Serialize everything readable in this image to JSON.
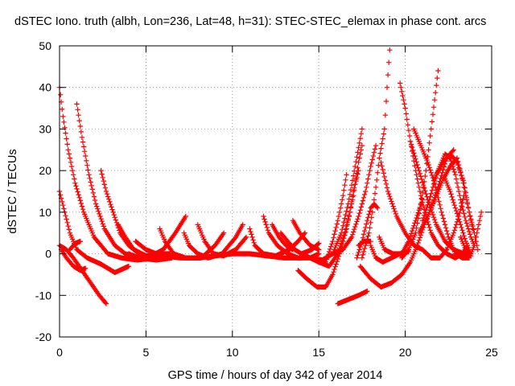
{
  "chart_data": {
    "type": "scatter",
    "title": "dSTEC Iono. truth (albh, Lon=236, Lat=48, h=31): STEC-STEC_elemax in phase cont. arcs",
    "xlabel": "GPS time / hours of day 342 of year 2014",
    "ylabel": "dSTEC  / TECUs",
    "xlim": [
      0,
      25
    ],
    "ylim": [
      -20,
      50
    ],
    "x_ticks": [
      "0",
      "5",
      "10",
      "15",
      "20",
      "25"
    ],
    "y_ticks": [
      "-20",
      "-10",
      "0",
      "10",
      "20",
      "30",
      "40",
      "50"
    ],
    "grid": true,
    "marker": "+",
    "color": "#ff0000",
    "series": [
      {
        "points": [
          [
            0.0,
            40
          ],
          [
            0.2,
            33
          ],
          [
            0.5,
            25
          ],
          [
            0.9,
            17
          ],
          [
            1.4,
            10
          ],
          [
            2.0,
            4
          ],
          [
            2.8,
            0
          ],
          [
            3.6,
            -1
          ],
          [
            4.5,
            -1.5
          ],
          [
            5.5,
            -1
          ]
        ]
      },
      {
        "points": [
          [
            0.0,
            15
          ],
          [
            0.3,
            10
          ],
          [
            0.6,
            5
          ],
          [
            1.0,
            1
          ],
          [
            1.6,
            -1
          ],
          [
            2.4,
            -2.5
          ],
          [
            3.2,
            -4.5
          ],
          [
            4.0,
            -3
          ]
        ]
      },
      {
        "points": [
          [
            0.0,
            2
          ],
          [
            0.4,
            1
          ],
          [
            0.8,
            -1
          ],
          [
            1.3,
            -4
          ],
          [
            1.8,
            -7
          ],
          [
            2.3,
            -10
          ],
          [
            2.7,
            -12
          ]
        ]
      },
      {
        "points": [
          [
            0.1,
            1
          ],
          [
            0.4,
            -1
          ],
          [
            0.8,
            -3
          ],
          [
            1.2,
            -4
          ],
          [
            1.5,
            -3.5
          ]
        ]
      },
      {
        "points": [
          [
            0.6,
            1
          ],
          [
            0.9,
            2.5
          ],
          [
            1.2,
            3
          ]
        ]
      },
      {
        "points": [
          [
            1.0,
            36
          ],
          [
            1.3,
            28
          ],
          [
            1.7,
            19
          ],
          [
            2.1,
            12
          ],
          [
            2.6,
            6
          ],
          [
            3.2,
            2
          ],
          [
            3.8,
            0
          ],
          [
            4.6,
            -1
          ],
          [
            5.6,
            -1.5
          ],
          [
            6.5,
            -1
          ]
        ]
      },
      {
        "points": [
          [
            2.4,
            20
          ],
          [
            2.7,
            15
          ],
          [
            3.1,
            10
          ],
          [
            3.5,
            5
          ],
          [
            4.0,
            2
          ],
          [
            4.6,
            0
          ],
          [
            5.4,
            -1
          ],
          [
            6.4,
            -1
          ]
        ]
      },
      {
        "points": [
          [
            3.4,
            7
          ],
          [
            3.8,
            4
          ],
          [
            4.3,
            1
          ],
          [
            5.0,
            -0.5
          ],
          [
            6.0,
            -0.5
          ]
        ]
      },
      {
        "points": [
          [
            4.4,
            3
          ],
          [
            5.0,
            1
          ],
          [
            5.6,
            0
          ],
          [
            6.4,
            0
          ]
        ]
      },
      {
        "points": [
          [
            4.0,
            0
          ],
          [
            4.6,
            -1
          ],
          [
            5.3,
            -0.5
          ],
          [
            6.0,
            1
          ],
          [
            6.7,
            5
          ],
          [
            7.3,
            9
          ]
        ]
      },
      {
        "points": [
          [
            5.8,
            6
          ],
          [
            6.1,
            3
          ],
          [
            6.6,
            0
          ],
          [
            7.3,
            -1
          ],
          [
            8.2,
            -1
          ],
          [
            9.0,
            2
          ],
          [
            9.5,
            5
          ]
        ]
      },
      {
        "points": [
          [
            7.2,
            5
          ],
          [
            7.5,
            2
          ],
          [
            8.0,
            0
          ],
          [
            8.6,
            -1
          ],
          [
            9.4,
            0
          ],
          [
            10.2,
            4
          ],
          [
            10.6,
            7
          ]
        ]
      },
      {
        "points": [
          [
            8.0,
            7
          ],
          [
            8.4,
            3
          ],
          [
            8.9,
            0
          ],
          [
            9.5,
            -0.5
          ],
          [
            10.2,
            1
          ],
          [
            10.8,
            4
          ]
        ]
      },
      {
        "points": [
          [
            6.0,
            -0.5
          ],
          [
            7.0,
            -1
          ],
          [
            8.0,
            -1
          ],
          [
            9.0,
            -0.5
          ],
          [
            10.0,
            0
          ],
          [
            11.0,
            0
          ],
          [
            12.0,
            -0.5
          ],
          [
            13.0,
            -1
          ],
          [
            14.0,
            -1
          ]
        ]
      },
      {
        "points": [
          [
            11.0,
            6
          ],
          [
            11.3,
            2
          ],
          [
            11.8,
            0
          ],
          [
            12.5,
            -0.5
          ],
          [
            13.3,
            1
          ],
          [
            13.8,
            3
          ],
          [
            14.2,
            5
          ]
        ]
      },
      {
        "points": [
          [
            11.8,
            9
          ],
          [
            12.1,
            5
          ],
          [
            12.6,
            2
          ],
          [
            13.2,
            0
          ],
          [
            13.8,
            -1
          ],
          [
            14.5,
            -1
          ],
          [
            15.0,
            0
          ]
        ]
      },
      {
        "points": [
          [
            12.3,
            7
          ],
          [
            12.7,
            4
          ],
          [
            13.1,
            2
          ],
          [
            13.5,
            1
          ]
        ]
      },
      {
        "points": [
          [
            12.8,
            5
          ],
          [
            13.2,
            3
          ],
          [
            13.6,
            1
          ],
          [
            14.0,
            0
          ],
          [
            14.6,
            1
          ],
          [
            15.0,
            2.5
          ]
        ]
      },
      {
        "points": [
          [
            13.5,
            8
          ],
          [
            13.9,
            5
          ],
          [
            14.5,
            2
          ],
          [
            15.0,
            1
          ]
        ]
      },
      {
        "points": [
          [
            14.0,
            0
          ],
          [
            14.5,
            -1
          ],
          [
            15.0,
            -2
          ],
          [
            15.4,
            -2
          ],
          [
            15.8,
            3
          ],
          [
            16.1,
            8
          ],
          [
            16.4,
            14
          ],
          [
            16.6,
            19
          ]
        ]
      },
      {
        "points": [
          [
            13.8,
            -4
          ],
          [
            14.3,
            -6
          ],
          [
            14.9,
            -8
          ],
          [
            15.4,
            -8
          ],
          [
            15.8,
            -5
          ],
          [
            16.2,
            0
          ],
          [
            16.6,
            6
          ],
          [
            17.0,
            14
          ],
          [
            17.3,
            22
          ],
          [
            17.5,
            26
          ]
        ]
      },
      {
        "points": [
          [
            15.0,
            -2
          ],
          [
            15.6,
            -3
          ],
          [
            16.1,
            0
          ],
          [
            16.5,
            5
          ],
          [
            16.8,
            10
          ],
          [
            17.0,
            15
          ],
          [
            17.3,
            20
          ]
        ]
      },
      {
        "points": [
          [
            14.5,
            -1
          ],
          [
            15.2,
            -1.5
          ],
          [
            15.8,
            0
          ],
          [
            16.3,
            5
          ],
          [
            16.7,
            12
          ],
          [
            17.1,
            21
          ],
          [
            17.5,
            30
          ]
        ]
      },
      {
        "points": [
          [
            15.8,
            0
          ],
          [
            16.4,
            1
          ],
          [
            16.9,
            4
          ],
          [
            17.3,
            9
          ],
          [
            17.7,
            15
          ],
          [
            18.0,
            21
          ],
          [
            18.3,
            26
          ]
        ]
      },
      {
        "points": [
          [
            17.3,
            2
          ],
          [
            17.6,
            3
          ],
          [
            18.0,
            3
          ]
        ]
      },
      {
        "points": [
          [
            16.1,
            -12
          ],
          [
            16.7,
            -11
          ],
          [
            17.3,
            -10
          ],
          [
            17.8,
            -9
          ]
        ]
      },
      {
        "points": [
          [
            17.4,
            -3
          ],
          [
            18.0,
            -6
          ],
          [
            18.6,
            -8
          ],
          [
            19.2,
            -7
          ],
          [
            19.8,
            -5
          ],
          [
            20.3,
            -2
          ],
          [
            20.7,
            2
          ],
          [
            21.1,
            7
          ],
          [
            21.5,
            11
          ],
          [
            21.9,
            16
          ],
          [
            22.4,
            23
          ],
          [
            22.8,
            25
          ]
        ]
      },
      {
        "points": [
          [
            18.5,
            4
          ],
          [
            18.8,
            1
          ],
          [
            19.3,
            0
          ],
          [
            19.8,
            0
          ],
          [
            20.2,
            3
          ],
          [
            20.6,
            8
          ],
          [
            21.0,
            13
          ]
        ]
      },
      {
        "points": [
          [
            17.5,
            -1
          ],
          [
            17.7,
            2
          ],
          [
            17.9,
            5
          ],
          [
            18.1,
            10
          ],
          [
            18.3,
            16
          ],
          [
            18.5,
            23
          ],
          [
            18.8,
            30
          ],
          [
            18.95,
            40
          ],
          [
            19.1,
            49
          ]
        ]
      },
      {
        "points": [
          [
            17.2,
            -1
          ],
          [
            17.5,
            3
          ],
          [
            17.8,
            8
          ],
          [
            18.0,
            11
          ],
          [
            18.2,
            12
          ],
          [
            18.4,
            11
          ]
        ]
      },
      {
        "points": [
          [
            18.6,
            22
          ],
          [
            19.0,
            15
          ],
          [
            19.5,
            9
          ],
          [
            20.0,
            5
          ],
          [
            20.5,
            2
          ],
          [
            21.0,
            1
          ],
          [
            21.5,
            -1
          ],
          [
            22.0,
            -1
          ],
          [
            22.4,
            1
          ],
          [
            22.8,
            5
          ],
          [
            23.1,
            9
          ],
          [
            23.4,
            14
          ]
        ]
      },
      {
        "points": [
          [
            18.0,
            2
          ],
          [
            18.3,
            -1
          ],
          [
            18.7,
            -2
          ],
          [
            19.2,
            -1
          ],
          [
            19.7,
            0
          ],
          [
            20.2,
            0.5
          ]
        ]
      },
      {
        "points": [
          [
            19.7,
            41
          ],
          [
            20.0,
            35
          ],
          [
            20.3,
            27
          ],
          [
            20.6,
            20
          ],
          [
            20.9,
            14
          ],
          [
            21.2,
            9
          ],
          [
            21.5,
            5
          ],
          [
            21.9,
            2
          ],
          [
            22.4,
            0
          ],
          [
            22.9,
            -1
          ],
          [
            23.3,
            0
          ],
          [
            23.6,
            2
          ]
        ]
      },
      {
        "points": [
          [
            20.5,
            30
          ],
          [
            20.9,
            26
          ],
          [
            21.3,
            22
          ],
          [
            21.7,
            17
          ],
          [
            22.1,
            10
          ],
          [
            22.5,
            4
          ],
          [
            22.9,
            0
          ],
          [
            23.3,
            -1
          ],
          [
            23.7,
            -1
          ]
        ]
      },
      {
        "points": [
          [
            20.3,
            27
          ],
          [
            20.8,
            20
          ],
          [
            21.3,
            13
          ],
          [
            21.8,
            7
          ],
          [
            22.3,
            3
          ],
          [
            22.8,
            1
          ],
          [
            23.4,
            0
          ],
          [
            23.8,
            -0.5
          ]
        ]
      },
      {
        "points": [
          [
            19.8,
            -1
          ],
          [
            20.2,
            1
          ],
          [
            20.6,
            5
          ],
          [
            20.9,
            12
          ],
          [
            21.2,
            20
          ],
          [
            21.5,
            30
          ],
          [
            21.7,
            37
          ],
          [
            21.9,
            44
          ]
        ]
      },
      {
        "points": [
          [
            21.0,
            8
          ],
          [
            21.4,
            13
          ],
          [
            21.8,
            19
          ],
          [
            22.2,
            22
          ],
          [
            22.6,
            24
          ],
          [
            23.0,
            22
          ],
          [
            23.4,
            17
          ],
          [
            23.7,
            10
          ],
          [
            24.0,
            5
          ],
          [
            24.2,
            1
          ]
        ]
      },
      {
        "points": [
          [
            20.8,
            5
          ],
          [
            21.3,
            9
          ],
          [
            21.8,
            14
          ],
          [
            22.2,
            18
          ],
          [
            22.6,
            21
          ],
          [
            23.0,
            23
          ],
          [
            23.3,
            18
          ],
          [
            23.6,
            12
          ],
          [
            23.9,
            6
          ]
        ]
      },
      {
        "points": [
          [
            21.7,
            18
          ],
          [
            22.0,
            21
          ],
          [
            22.3,
            24
          ],
          [
            22.6,
            23
          ],
          [
            22.9,
            19
          ],
          [
            23.2,
            13
          ],
          [
            23.5,
            8
          ],
          [
            23.8,
            4
          ],
          [
            24.0,
            2
          ]
        ]
      },
      {
        "points": [
          [
            22.3,
            18
          ],
          [
            22.6,
            15
          ],
          [
            22.9,
            11
          ],
          [
            23.2,
            7
          ],
          [
            23.5,
            3
          ],
          [
            23.8,
            0
          ]
        ]
      },
      {
        "points": [
          [
            23.2,
            4
          ],
          [
            23.5,
            1
          ],
          [
            23.8,
            0
          ],
          [
            24.0,
            2
          ],
          [
            24.2,
            6
          ],
          [
            24.4,
            10
          ]
        ]
      }
    ]
  }
}
